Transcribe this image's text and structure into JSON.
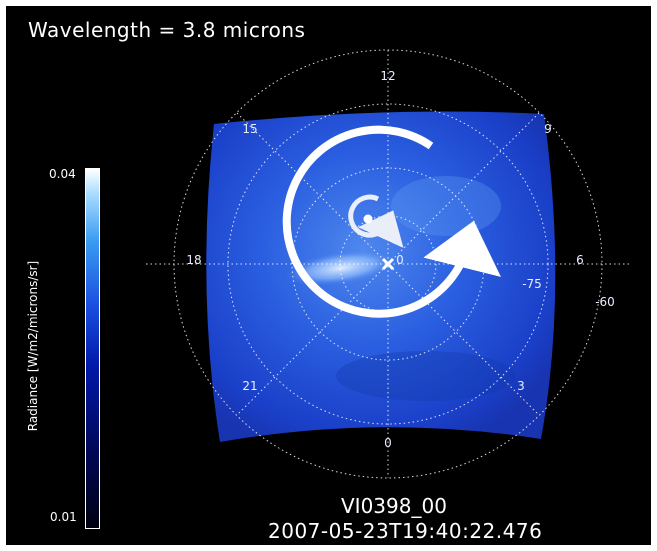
{
  "title": "Wavelength = 3.8 microns",
  "colorbar": {
    "label": "Radiance [W/m2/microns/sr]",
    "max_label": "0.04",
    "min_label": "0.01",
    "colormap": [
      "#000010",
      "#0018a8",
      "#3a9cf2",
      "#ffffff"
    ]
  },
  "polar_grid": {
    "hour_labels": [
      "12",
      "15",
      "9",
      "18",
      "6",
      "21",
      "3",
      "0"
    ],
    "latitude_labels": [
      "-75",
      "-60"
    ],
    "center_label": "0"
  },
  "image_id": "VI0398_00",
  "timestamp": "2007-05-23T19:40:22.476",
  "colors": {
    "background": "#000000",
    "image_blue": "#1c4ad6",
    "arrows": "#ffffff"
  }
}
